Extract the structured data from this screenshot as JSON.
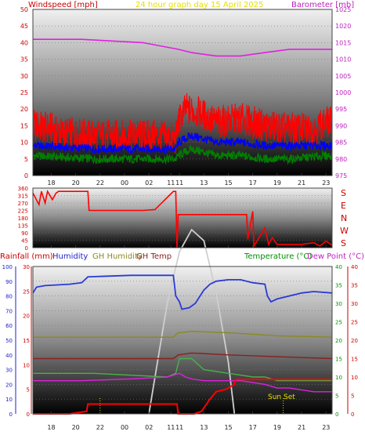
{
  "titles": {
    "main": "24 hour graph day   15 April 2025",
    "windspeed": "Windspeed [mph]",
    "barometer": "Barometer [mb]",
    "rainfall": "Rainfall (mm)",
    "humidity": "Humidity",
    "gh_humidity": "GH Humidity",
    "gh_temp": "GH Temp",
    "temperature": "Temperature (°C)",
    "dew_point": "Dew Point (°C)"
  },
  "compass": [
    "S",
    "E",
    "N",
    "W",
    "S"
  ],
  "annotations": {
    "sun_set": "Sun Set"
  },
  "colors": {
    "windspeed": "#ff0000",
    "wind_avg": "#0000ff",
    "wind_low": "#008000",
    "barometer": "#e020e0",
    "direction": "#ff0000",
    "humidity": "#2a3ad8",
    "gh_humidity": "#8a8a20",
    "gh_temp": "#8a2020",
    "temperature": "#4ab04a",
    "dew_point": "#e020e0",
    "rainfall": "#ff0000",
    "sun": "#cfcfcf",
    "axis_red": "#cc0000",
    "axis_magenta": "#c020c0",
    "axis_blue": "#2020cc",
    "axis_green": "#009000"
  },
  "chart_data": [
    {
      "type": "line",
      "name": "wind-barometer",
      "x_ticks": [
        "18",
        "20",
        "22",
        "00",
        "02",
        "11",
        "11",
        "13",
        "15",
        "17",
        "19",
        "21",
        "23"
      ],
      "y_left_ticks": [
        "0",
        "5",
        "10",
        "15",
        "20",
        "25",
        "30",
        "35",
        "40",
        "45",
        "50"
      ],
      "y_left_lim": [
        0,
        50
      ],
      "y_right_ticks": [
        "975",
        "980",
        "985",
        "990",
        "995",
        "1000",
        "1005",
        "1010",
        "1015",
        "1020",
        "1025"
      ],
      "y_right_lim": [
        975,
        1025
      ],
      "gap_hour": 11.8,
      "wind_gust": {
        "x": [
          0,
          1.7,
          1.8,
          5,
          8,
          10,
          11.7,
          11.9,
          12.5,
          13.5,
          15,
          17,
          19,
          21,
          23,
          24,
          24.5
        ],
        "y": [
          15,
          14,
          13,
          12,
          12,
          12,
          11,
          16,
          20,
          19,
          16,
          17,
          15,
          14,
          14,
          16,
          16
        ]
      },
      "wind_avg": {
        "x": [
          0,
          5,
          10,
          11.7,
          11.9,
          13,
          15,
          17,
          19,
          21,
          24,
          24.5
        ],
        "y": [
          9,
          8,
          8,
          8,
          10,
          12,
          10,
          10,
          9,
          9,
          9,
          9
        ]
      },
      "wind_low": {
        "x": [
          0,
          5,
          10,
          11.7,
          11.9,
          13,
          15,
          17,
          19,
          21,
          24,
          24.5
        ],
        "y": [
          6,
          5,
          5,
          5,
          6,
          8,
          6,
          6,
          5,
          5,
          6,
          6
        ]
      },
      "barometer": {
        "x": [
          0,
          4,
          9,
          11.9,
          13,
          15,
          17,
          19,
          21,
          24,
          24.5
        ],
        "y": [
          1016,
          1016,
          1015,
          1013,
          1012,
          1011,
          1011,
          1012,
          1013,
          1013,
          1013
        ]
      }
    },
    {
      "type": "line",
      "name": "wind-direction",
      "y_ticks": [
        "0",
        "45",
        "90",
        "135",
        "180",
        "225",
        "270",
        "315",
        "360"
      ],
      "y_lim": [
        0,
        360
      ],
      "direction": {
        "x": [
          0,
          0.5,
          0.7,
          1.0,
          1.2,
          1.6,
          1.9,
          2.1,
          2.5,
          4.5,
          4.6,
          9,
          10,
          11.5,
          11.7,
          11.8,
          11.9,
          14.5,
          16.5,
          17.5,
          17.6,
          18.0,
          18.1,
          19.0,
          19.3,
          19.6,
          20,
          22,
          23,
          23.5,
          24,
          24.5
        ],
        "y": [
          330,
          260,
          340,
          270,
          340,
          290,
          330,
          340,
          340,
          340,
          225,
          225,
          230,
          340,
          340,
          0,
          200,
          200,
          200,
          200,
          50,
          220,
          10,
          120,
          20,
          60,
          20,
          20,
          30,
          10,
          40,
          15
        ]
      }
    },
    {
      "type": "line",
      "name": "humidity-temperature-rain",
      "y_humidity_ticks": [
        "0",
        "10",
        "20",
        "30",
        "40",
        "50",
        "60",
        "70",
        "80",
        "90",
        "100"
      ],
      "y_humidity_lim": [
        0,
        100
      ],
      "y_rain_ticks": [
        "0",
        "5",
        "10",
        "15",
        "20",
        "25",
        "30"
      ],
      "y_rain_lim": [
        0,
        30
      ],
      "y_temp_ticks": [
        "0",
        "5",
        "10",
        "15",
        "20",
        "25",
        "30",
        "35",
        "40"
      ],
      "y_temp_lim": [
        0,
        40
      ],
      "humidity": {
        "x": [
          0,
          0.3,
          1,
          3,
          4,
          4.5,
          8,
          11.5,
          11.7,
          12.0,
          12.2,
          12.8,
          13.3,
          14,
          14.5,
          15,
          16,
          17,
          18,
          19,
          19.2,
          19.5,
          20,
          22,
          23,
          24.5
        ],
        "y": [
          82,
          86,
          87,
          88,
          89,
          93,
          94,
          94,
          80,
          76,
          71,
          72,
          75,
          84,
          88,
          90,
          91,
          91,
          89,
          88,
          80,
          76,
          78,
          82,
          83,
          82
        ]
      },
      "gh_humidity": {
        "x": [
          0,
          11.5,
          11.9,
          13,
          16,
          20,
          24.5
        ],
        "y": [
          52,
          52,
          55,
          56,
          55,
          53,
          52
        ]
      },
      "gh_temp": {
        "x": [
          0,
          11.5,
          11.9,
          13,
          16,
          20,
          24.5
        ],
        "y": [
          15,
          15,
          16,
          16.5,
          16,
          15.5,
          15
        ]
      },
      "temperature": {
        "x": [
          0,
          5,
          11,
          11.7,
          12.0,
          13,
          14,
          15,
          16,
          17,
          18,
          19,
          20,
          21,
          24.5
        ],
        "y": [
          11,
          11,
          10,
          11,
          15,
          15,
          12,
          11.5,
          11,
          10.5,
          10,
          10,
          9,
          9,
          9
        ]
      },
      "dew_point": {
        "x": [
          0,
          4,
          8,
          11,
          12,
          12.5,
          13,
          14,
          15,
          17,
          18,
          19,
          20,
          21,
          23,
          24.5
        ],
        "y": [
          9,
          9,
          9.5,
          10,
          11,
          10,
          9.5,
          9,
          9,
          9,
          8.5,
          8,
          7,
          7,
          6,
          6
        ]
      },
      "rainfall": {
        "x": [
          0,
          1,
          3,
          4.4,
          4.5,
          11.8,
          11.9,
          13.2,
          13.8,
          14.5,
          15,
          15.8,
          16.5,
          16.6,
          24.5
        ],
        "y": [
          0,
          0,
          0,
          0.5,
          2,
          2,
          0,
          0,
          0.5,
          3,
          4.5,
          5,
          6,
          7,
          7
        ]
      },
      "sun": {
        "x": [
          9.5,
          11,
          12,
          13,
          14,
          15,
          16,
          16.5
        ],
        "y": [
          0,
          30,
          44,
          50,
          47,
          33,
          14,
          0
        ]
      }
    }
  ]
}
